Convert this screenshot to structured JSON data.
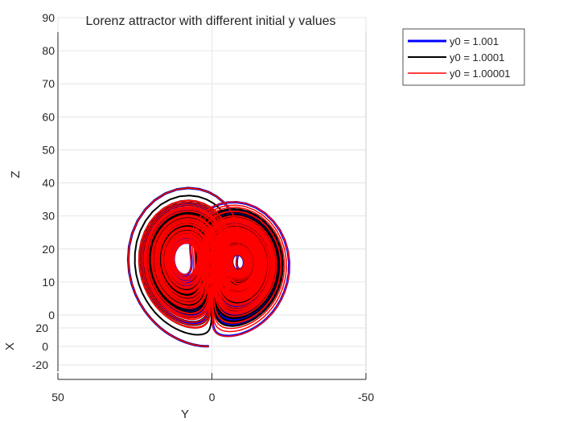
{
  "chart_data": {
    "type": "line",
    "title": "Lorenz attractor with different initial y values",
    "xlabel": "Y",
    "ylabel": "Z",
    "zlabel": "X",
    "y_axis_ticks": [
      "50",
      "0",
      "-50"
    ],
    "z_axis_ticks": [
      "0",
      "10",
      "20",
      "30",
      "40",
      "50",
      "60",
      "70",
      "80",
      "90"
    ],
    "x_axis_ticks": [
      "20",
      "0",
      "-20"
    ],
    "ylim": [
      50,
      -50
    ],
    "zlim": [
      0,
      90
    ],
    "xlim": [
      -20,
      20
    ],
    "grid": true,
    "legend_position": "top-right",
    "series": [
      {
        "name": "y0 = 1.001",
        "color": "#0000ff",
        "width": 3
      },
      {
        "name": "y0 = 1.0001",
        "color": "#000000",
        "width": 2
      },
      {
        "name": "y0 = 1.00001",
        "color": "#ff0000",
        "width": 1.5
      }
    ]
  }
}
